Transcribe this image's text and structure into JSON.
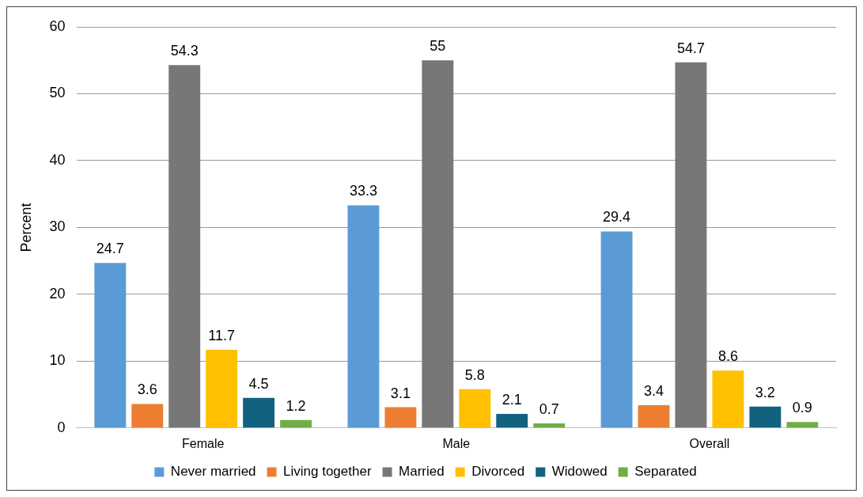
{
  "chart_data": {
    "type": "bar",
    "ylabel": "Percent",
    "categories": [
      "Female",
      "Male",
      "Overall"
    ],
    "series": [
      {
        "name": "Never married",
        "color": "#5b9bd5",
        "values": [
          24.7,
          33.3,
          29.4
        ]
      },
      {
        "name": "Living together",
        "color": "#ed7d31",
        "values": [
          3.6,
          3.1,
          3.4
        ]
      },
      {
        "name": "Married",
        "color": "#777777",
        "values": [
          54.3,
          55,
          54.7
        ]
      },
      {
        "name": "Divorced",
        "color": "#ffc000",
        "values": [
          11.7,
          5.8,
          8.6
        ]
      },
      {
        "name": "Widowed",
        "color": "#11627f",
        "values": [
          4.5,
          2.1,
          3.2
        ]
      },
      {
        "name": "Separated",
        "color": "#70ad47",
        "values": [
          1.2,
          0.7,
          0.9
        ]
      }
    ],
    "ylim": [
      0,
      60
    ],
    "yticks": [
      0,
      10,
      20,
      30,
      40,
      50,
      60
    ],
    "grid": "y",
    "legend": "bottom",
    "data_labels": true
  }
}
